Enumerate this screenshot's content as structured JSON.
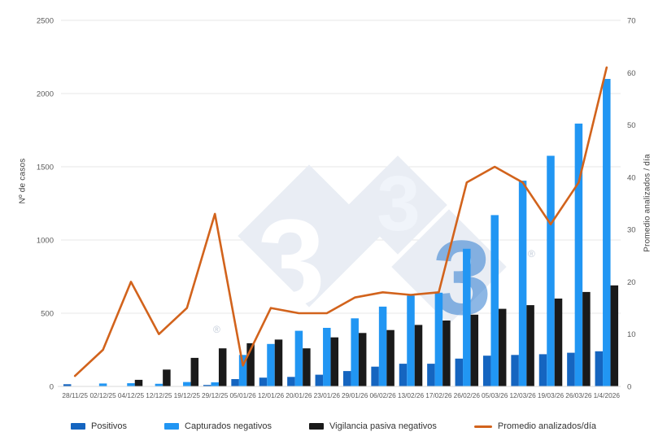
{
  "chart_data": {
    "type": "bar",
    "title": "",
    "categories": [
      "28/11/25",
      "02/12/25",
      "04/12/25",
      "12/12/25",
      "19/12/25",
      "29/12/25",
      "05/01/26",
      "12/01/26",
      "20/01/26",
      "23/01/26",
      "29/01/26",
      "06/02/26",
      "13/02/26",
      "17/02/26",
      "26/02/26",
      "05/03/26",
      "12/03/26",
      "19/03/26",
      "26/03/26",
      "1/4/2026"
    ],
    "series": [
      {
        "name": "Positivos",
        "type": "bar",
        "axis": "left",
        "color": "#1565c0",
        "values": [
          15,
          0,
          0,
          0,
          0,
          10,
          50,
          60,
          65,
          80,
          105,
          135,
          155,
          155,
          190,
          210,
          215,
          220,
          230,
          240
        ]
      },
      {
        "name": "Capturados negativos",
        "type": "bar",
        "axis": "left",
        "color": "#2196f3",
        "values": [
          0,
          20,
          22,
          18,
          30,
          28,
          215,
          290,
          380,
          400,
          465,
          545,
          620,
          640,
          940,
          1170,
          1405,
          1575,
          1795,
          2100
        ]
      },
      {
        "name": "Vigilancia pasiva negativos",
        "type": "bar",
        "axis": "left",
        "color": "#1a1a1a",
        "values": [
          0,
          0,
          45,
          115,
          195,
          260,
          295,
          320,
          260,
          335,
          365,
          385,
          420,
          450,
          490,
          530,
          555,
          600,
          645,
          690
        ]
      },
      {
        "name": "Promedio analizados/día",
        "type": "line",
        "axis": "right",
        "color": "#d2631c",
        "values": [
          2,
          7,
          20,
          10,
          15,
          33,
          4,
          15,
          14,
          14,
          17,
          18,
          17.5,
          18,
          39,
          42,
          39,
          31,
          39,
          61
        ]
      }
    ],
    "ylabel_left": "Nº de casos",
    "ylabel_right": "Promedio analizados / día",
    "ylim_left": [
      0,
      2500
    ],
    "ytick_step_left": 500,
    "ylim_right": [
      0,
      70
    ],
    "ytick_step_right": 10,
    "grid": true,
    "legend_position": "bottom"
  },
  "colors": {
    "grid": "#e7e7e7",
    "tick_text": "#595959",
    "axis_title_text": "#404040",
    "watermark_diamond": "#e9edf4",
    "watermark_three_white": "#ffffff",
    "watermark_three_light": "#f0f4fa",
    "watermark_three_blue": "#2f7cd0",
    "watermark_registered": "#c4cdda"
  },
  "watermark": {
    "threes": [
      "3",
      "3",
      "3"
    ],
    "registered": "®"
  }
}
